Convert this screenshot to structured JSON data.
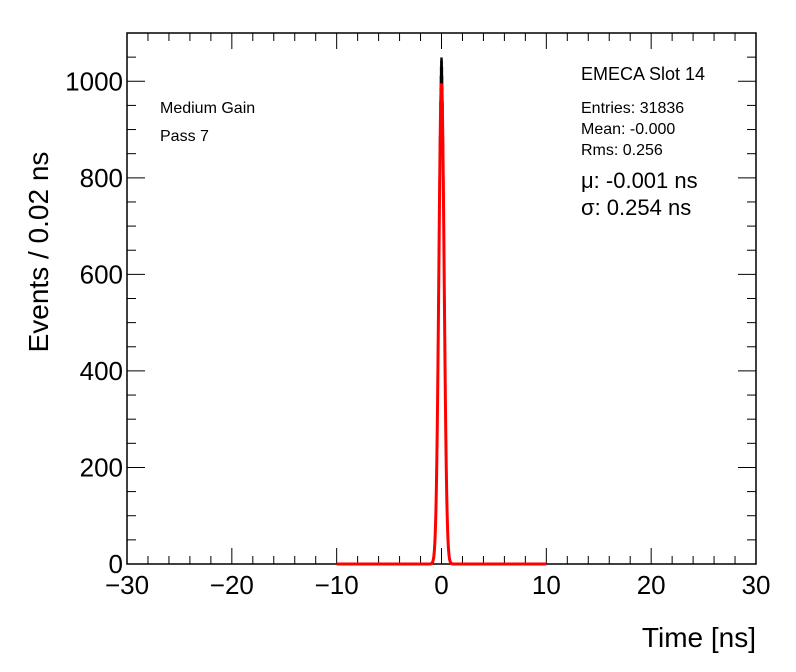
{
  "chart_data": {
    "type": "histogram",
    "xlabel": "Time [ns]",
    "ylabel": "Events / 0.02 ns",
    "xlim": [
      -30,
      30
    ],
    "ylim": [
      0,
      1100
    ],
    "x_ticks": [
      "−30",
      "−20",
      "−10",
      "0",
      "10",
      "20",
      "30"
    ],
    "x_tick_values": [
      -30,
      -20,
      -10,
      0,
      10,
      20,
      30
    ],
    "y_ticks": [
      "0",
      "200",
      "400",
      "600",
      "800",
      "1000"
    ],
    "y_tick_values": [
      0,
      200,
      400,
      600,
      800,
      1000
    ],
    "annotations": {
      "gain": "Medium Gain",
      "pass": "Pass 7",
      "title": "EMECA Slot 14",
      "entries": "Entries: 31836",
      "mean": "Mean: -0.000",
      "rms": "Rms: 0.256",
      "mu": "μ: -0.001 ns",
      "sigma": "σ: 0.254 ns"
    },
    "histogram": {
      "name": "",
      "color": "#000000",
      "bin_width": 0.02,
      "peak": 1048,
      "mean": 0.0,
      "rms": 0.256
    },
    "fit": {
      "type": "gaussian",
      "color": "#ff0000",
      "mu": -0.001,
      "sigma": 0.254,
      "amplitude": 995,
      "range": [
        -10,
        10
      ]
    }
  }
}
